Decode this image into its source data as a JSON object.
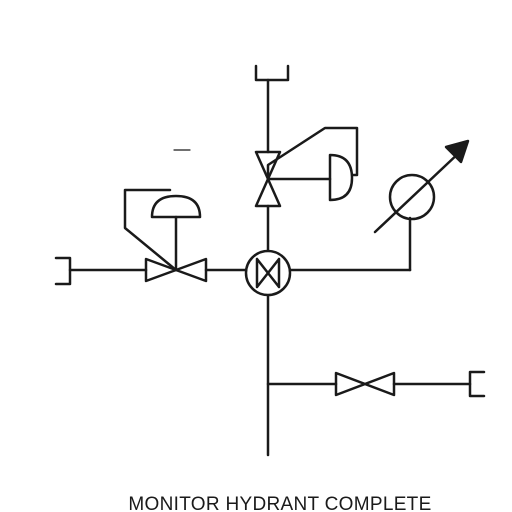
{
  "caption": "MONITOR HYDRANT COMPLETE",
  "colors": {
    "background": "#ffffff",
    "stroke": "#1a1a1a"
  },
  "symbols": [
    "pipe-cap-top",
    "diaphragm-control-valve-vertical",
    "diaphragm-control-valve-horizontal",
    "four-way-valve",
    "monitor-nozzle",
    "gate-valve-branch",
    "pipe-cap-left",
    "pipe-cap-right"
  ]
}
